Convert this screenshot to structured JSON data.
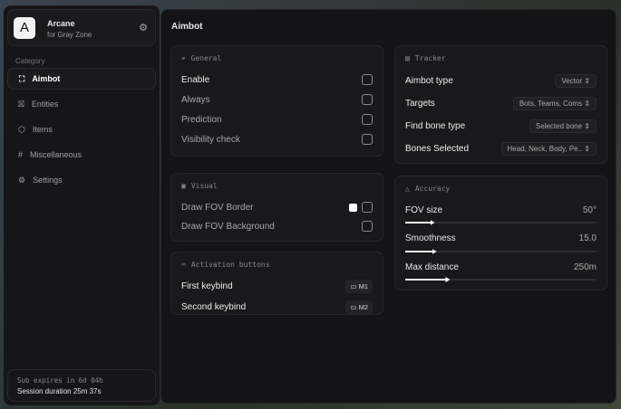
{
  "brand": {
    "logo": "A",
    "name": "Arcane",
    "subtitle": "for Gray Zone"
  },
  "sidebar": {
    "category_label": "Category",
    "items": [
      {
        "label": "Aimbot",
        "icon": "crosshair-icon",
        "active": true
      },
      {
        "label": "Entities",
        "icon": "entity-icon"
      },
      {
        "label": "Items",
        "icon": "box-icon"
      },
      {
        "label": "Miscellaneous",
        "icon": "hash-icon"
      },
      {
        "label": "Settings",
        "icon": "gear-icon"
      }
    ]
  },
  "footer": {
    "sub": "Sub expires in 6d 04h",
    "session": "Session duration 25m 37s"
  },
  "main": {
    "title": "Aimbot",
    "general": {
      "title": "General",
      "rows": [
        {
          "label": "Enable",
          "checked": false
        },
        {
          "label": "Always",
          "checked": false
        },
        {
          "label": "Prediction",
          "checked": false
        },
        {
          "label": "Visibility check",
          "checked": false
        }
      ]
    },
    "visual": {
      "title": "Visual",
      "rows": [
        {
          "label": "Draw FOV Border",
          "checked": false,
          "color": "#ffffff"
        },
        {
          "label": "Draw FOV Background",
          "checked": false
        }
      ]
    },
    "activation": {
      "title": "Activation buttons",
      "rows": [
        {
          "label": "First keybind",
          "key": "M1"
        },
        {
          "label": "Second keybind",
          "key": "M2"
        }
      ]
    },
    "tracker": {
      "title": "Tracker",
      "rows": [
        {
          "label": "Aimbot type",
          "value": "Vector"
        },
        {
          "label": "Targets",
          "value": "Bots, Teams, Coms"
        },
        {
          "label": "Find bone type",
          "value": "Selected bone"
        },
        {
          "label": "Bones Selected",
          "value": "Head, Neck, Body, Pe.."
        }
      ]
    },
    "accuracy": {
      "title": "Accuracy",
      "sliders": [
        {
          "label": "FOV size",
          "value": "50°",
          "fraction": 0.14
        },
        {
          "label": "Smoothness",
          "value": "15.0",
          "fraction": 0.15
        },
        {
          "label": "Max distance",
          "value": "250m",
          "fraction": 0.22
        }
      ]
    }
  }
}
